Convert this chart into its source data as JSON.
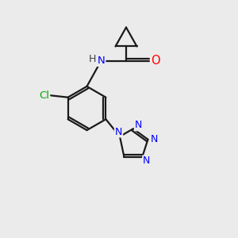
{
  "background_color": "#ebebeb",
  "bond_color": "#1a1a1a",
  "nitrogen_color": "#0000ff",
  "oxygen_color": "#ff0000",
  "chlorine_color": "#00aa00",
  "hydrogen_color": "#404040",
  "figsize": [
    3.0,
    3.0
  ],
  "dpi": 100,
  "xlim": [
    0,
    10
  ],
  "ylim": [
    0,
    10
  ]
}
